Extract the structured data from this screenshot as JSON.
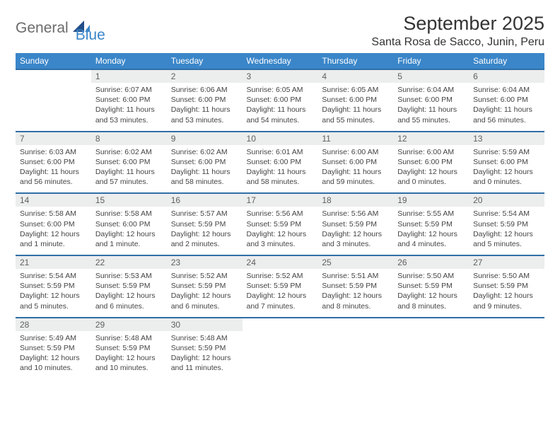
{
  "brand": {
    "word1": "General",
    "word2": "Blue"
  },
  "title": "September 2025",
  "location": "Santa Rosa de Sacco, Junin, Peru",
  "colors": {
    "header_bg": "#3a86c9",
    "header_text": "#ffffff",
    "row_divider": "#2f6fa6",
    "daynum_bg": "#eceded",
    "daynum_text": "#5f5f5f",
    "body_text": "#444444",
    "page_bg": "#ffffff",
    "logo_gray": "#6b6b6b",
    "logo_blue": "#3a86c9"
  },
  "typography": {
    "title_fontsize": 27,
    "location_fontsize": 16,
    "dayhead_fontsize": 12,
    "daynum_fontsize": 12,
    "body_fontsize": 10.5,
    "font_family": "Arial"
  },
  "layout": {
    "columns": 7,
    "rows": 5,
    "first_weekday_offset": 1
  },
  "day_headers": [
    "Sunday",
    "Monday",
    "Tuesday",
    "Wednesday",
    "Thursday",
    "Friday",
    "Saturday"
  ],
  "days": [
    {
      "n": "1",
      "sunrise": "Sunrise: 6:07 AM",
      "sunset": "Sunset: 6:00 PM",
      "daylight": "Daylight: 11 hours and 53 minutes."
    },
    {
      "n": "2",
      "sunrise": "Sunrise: 6:06 AM",
      "sunset": "Sunset: 6:00 PM",
      "daylight": "Daylight: 11 hours and 53 minutes."
    },
    {
      "n": "3",
      "sunrise": "Sunrise: 6:05 AM",
      "sunset": "Sunset: 6:00 PM",
      "daylight": "Daylight: 11 hours and 54 minutes."
    },
    {
      "n": "4",
      "sunrise": "Sunrise: 6:05 AM",
      "sunset": "Sunset: 6:00 PM",
      "daylight": "Daylight: 11 hours and 55 minutes."
    },
    {
      "n": "5",
      "sunrise": "Sunrise: 6:04 AM",
      "sunset": "Sunset: 6:00 PM",
      "daylight": "Daylight: 11 hours and 55 minutes."
    },
    {
      "n": "6",
      "sunrise": "Sunrise: 6:04 AM",
      "sunset": "Sunset: 6:00 PM",
      "daylight": "Daylight: 11 hours and 56 minutes."
    },
    {
      "n": "7",
      "sunrise": "Sunrise: 6:03 AM",
      "sunset": "Sunset: 6:00 PM",
      "daylight": "Daylight: 11 hours and 56 minutes."
    },
    {
      "n": "8",
      "sunrise": "Sunrise: 6:02 AM",
      "sunset": "Sunset: 6:00 PM",
      "daylight": "Daylight: 11 hours and 57 minutes."
    },
    {
      "n": "9",
      "sunrise": "Sunrise: 6:02 AM",
      "sunset": "Sunset: 6:00 PM",
      "daylight": "Daylight: 11 hours and 58 minutes."
    },
    {
      "n": "10",
      "sunrise": "Sunrise: 6:01 AM",
      "sunset": "Sunset: 6:00 PM",
      "daylight": "Daylight: 11 hours and 58 minutes."
    },
    {
      "n": "11",
      "sunrise": "Sunrise: 6:00 AM",
      "sunset": "Sunset: 6:00 PM",
      "daylight": "Daylight: 11 hours and 59 minutes."
    },
    {
      "n": "12",
      "sunrise": "Sunrise: 6:00 AM",
      "sunset": "Sunset: 6:00 PM",
      "daylight": "Daylight: 12 hours and 0 minutes."
    },
    {
      "n": "13",
      "sunrise": "Sunrise: 5:59 AM",
      "sunset": "Sunset: 6:00 PM",
      "daylight": "Daylight: 12 hours and 0 minutes."
    },
    {
      "n": "14",
      "sunrise": "Sunrise: 5:58 AM",
      "sunset": "Sunset: 6:00 PM",
      "daylight": "Daylight: 12 hours and 1 minute."
    },
    {
      "n": "15",
      "sunrise": "Sunrise: 5:58 AM",
      "sunset": "Sunset: 6:00 PM",
      "daylight": "Daylight: 12 hours and 1 minute."
    },
    {
      "n": "16",
      "sunrise": "Sunrise: 5:57 AM",
      "sunset": "Sunset: 5:59 PM",
      "daylight": "Daylight: 12 hours and 2 minutes."
    },
    {
      "n": "17",
      "sunrise": "Sunrise: 5:56 AM",
      "sunset": "Sunset: 5:59 PM",
      "daylight": "Daylight: 12 hours and 3 minutes."
    },
    {
      "n": "18",
      "sunrise": "Sunrise: 5:56 AM",
      "sunset": "Sunset: 5:59 PM",
      "daylight": "Daylight: 12 hours and 3 minutes."
    },
    {
      "n": "19",
      "sunrise": "Sunrise: 5:55 AM",
      "sunset": "Sunset: 5:59 PM",
      "daylight": "Daylight: 12 hours and 4 minutes."
    },
    {
      "n": "20",
      "sunrise": "Sunrise: 5:54 AM",
      "sunset": "Sunset: 5:59 PM",
      "daylight": "Daylight: 12 hours and 5 minutes."
    },
    {
      "n": "21",
      "sunrise": "Sunrise: 5:54 AM",
      "sunset": "Sunset: 5:59 PM",
      "daylight": "Daylight: 12 hours and 5 minutes."
    },
    {
      "n": "22",
      "sunrise": "Sunrise: 5:53 AM",
      "sunset": "Sunset: 5:59 PM",
      "daylight": "Daylight: 12 hours and 6 minutes."
    },
    {
      "n": "23",
      "sunrise": "Sunrise: 5:52 AM",
      "sunset": "Sunset: 5:59 PM",
      "daylight": "Daylight: 12 hours and 6 minutes."
    },
    {
      "n": "24",
      "sunrise": "Sunrise: 5:52 AM",
      "sunset": "Sunset: 5:59 PM",
      "daylight": "Daylight: 12 hours and 7 minutes."
    },
    {
      "n": "25",
      "sunrise": "Sunrise: 5:51 AM",
      "sunset": "Sunset: 5:59 PM",
      "daylight": "Daylight: 12 hours and 8 minutes."
    },
    {
      "n": "26",
      "sunrise": "Sunrise: 5:50 AM",
      "sunset": "Sunset: 5:59 PM",
      "daylight": "Daylight: 12 hours and 8 minutes."
    },
    {
      "n": "27",
      "sunrise": "Sunrise: 5:50 AM",
      "sunset": "Sunset: 5:59 PM",
      "daylight": "Daylight: 12 hours and 9 minutes."
    },
    {
      "n": "28",
      "sunrise": "Sunrise: 5:49 AM",
      "sunset": "Sunset: 5:59 PM",
      "daylight": "Daylight: 12 hours and 10 minutes."
    },
    {
      "n": "29",
      "sunrise": "Sunrise: 5:48 AM",
      "sunset": "Sunset: 5:59 PM",
      "daylight": "Daylight: 12 hours and 10 minutes."
    },
    {
      "n": "30",
      "sunrise": "Sunrise: 5:48 AM",
      "sunset": "Sunset: 5:59 PM",
      "daylight": "Daylight: 12 hours and 11 minutes."
    }
  ]
}
